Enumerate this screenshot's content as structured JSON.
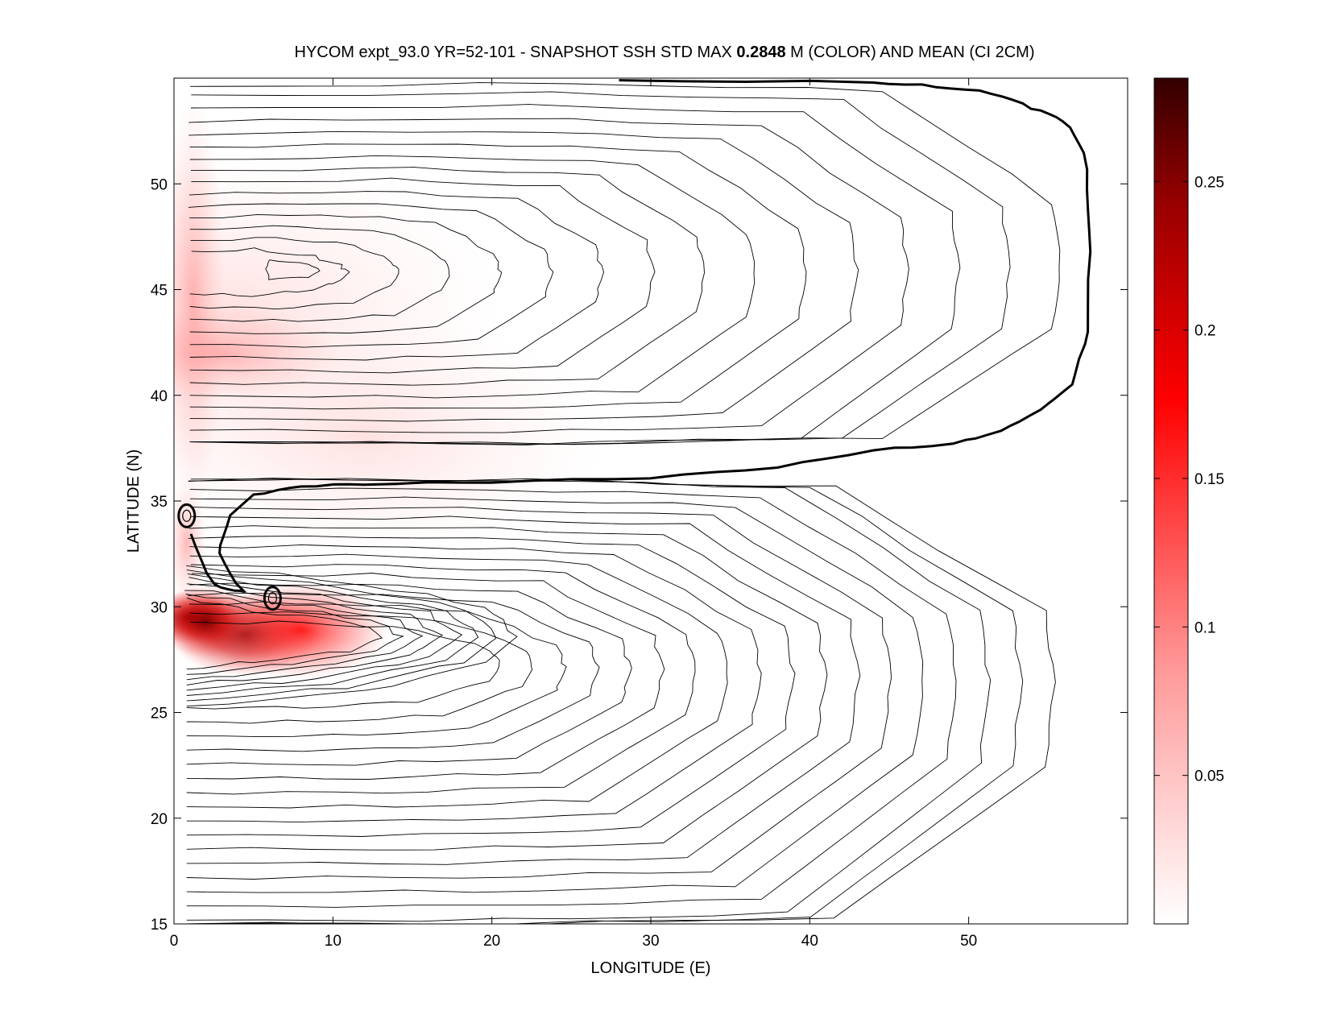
{
  "title": {
    "prefix": "HYCOM expt_93.0 YR=52-101 - SNAPSHOT SSH STD MAX ",
    "max_value": "0.2848",
    "suffix": " M (COLOR) AND MEAN (CI 2CM)"
  },
  "chart_data": {
    "type": "heatmap",
    "title": "HYCOM expt_93.0 YR=52-101 - SNAPSHOT SSH STD MAX 0.2848 M (COLOR) AND MEAN (CI 2CM)",
    "xlabel": "LONGITUDE (E)",
    "ylabel": "LATITUDE (N)",
    "xlim": [
      0,
      60
    ],
    "ylim": [
      15,
      55
    ],
    "x_ticks": [
      0,
      10,
      20,
      30,
      40,
      50
    ],
    "y_ticks": [
      15,
      20,
      25,
      30,
      35,
      40,
      45,
      50
    ],
    "grid": false,
    "colorbar": {
      "range": [
        0,
        0.2848
      ],
      "ticks": [
        0.05,
        0.1,
        0.15,
        0.2,
        0.25
      ],
      "tick_labels": [
        "0.05",
        "0.1",
        "0.15",
        "0.2",
        "0.25"
      ],
      "colormap": [
        "#ffffff",
        "#ff9999",
        "#ff0000",
        "#990000",
        "#330000"
      ]
    },
    "color_field_peaks": [
      {
        "lon": 4.5,
        "lat": 28.7,
        "value": 0.2848
      },
      {
        "lon": 1.0,
        "lat": 29.5,
        "value": 0.26
      },
      {
        "lon": 8.0,
        "lat": 28.9,
        "value": 0.22
      },
      {
        "lon": 1.2,
        "lat": 45.0,
        "value": 0.1
      },
      {
        "lon": 3.0,
        "lat": 42.0,
        "value": 0.07
      }
    ],
    "mean_ssh_contours": {
      "interval": "2CM",
      "zero_contour": [
        [
          1.0,
          33.4
        ],
        [
          2.5,
          31.0
        ],
        [
          4.3,
          30.7
        ],
        [
          2.8,
          32.5
        ],
        [
          3.5,
          34.3
        ],
        [
          5.0,
          35.3
        ],
        [
          8.0,
          35.7
        ],
        [
          12.0,
          35.8
        ],
        [
          20.0,
          35.9
        ],
        [
          30.0,
          36.1
        ],
        [
          38.0,
          36.6
        ],
        [
          44.0,
          37.4
        ],
        [
          49.0,
          37.7
        ],
        [
          52.0,
          38.3
        ],
        [
          54.5,
          39.3
        ],
        [
          56.5,
          40.5
        ],
        [
          57.5,
          43.0
        ],
        [
          57.6,
          48.0
        ],
        [
          57.3,
          51.5
        ],
        [
          56.0,
          53.0
        ],
        [
          54.0,
          53.6
        ],
        [
          51.5,
          54.3
        ],
        [
          48.0,
          54.6
        ],
        [
          44.0,
          54.8
        ],
        [
          28.0,
          54.9
        ]
      ],
      "eddy_rings": [
        {
          "lon": 0.8,
          "lat": 34.3
        },
        {
          "lon": 6.2,
          "lat": 30.4
        }
      ]
    }
  }
}
